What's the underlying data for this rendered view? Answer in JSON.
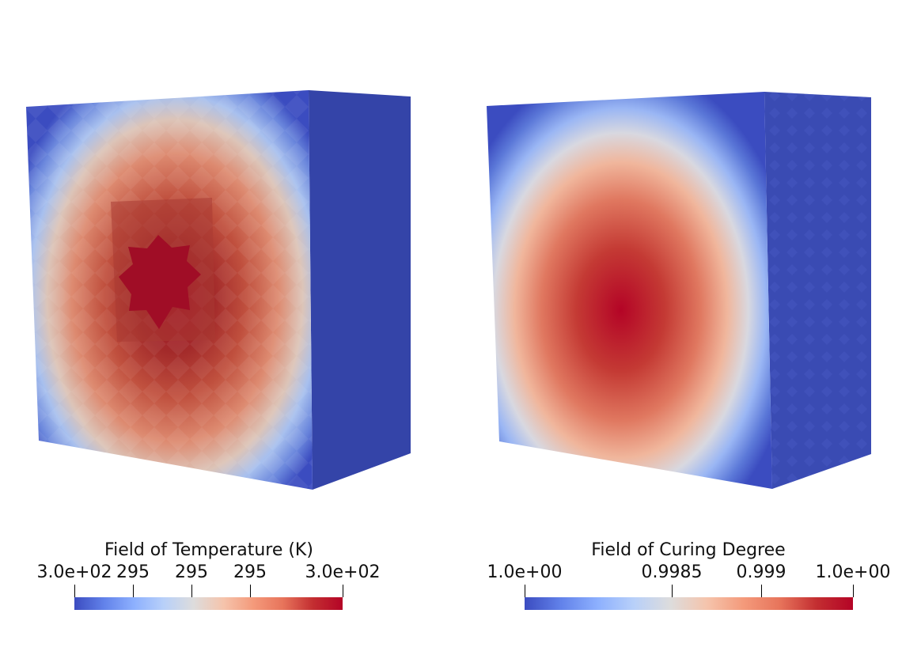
{
  "colormap": [
    "#3b4cc0",
    "#6282ea",
    "#8db0fe",
    "#b8d0f9",
    "#dddcdc",
    "#f5c4ac",
    "#f49a7b",
    "#e7745b",
    "#c32e31",
    "#b40426"
  ],
  "face_colors": {
    "background": "#3b4cc0",
    "side": "#3646a3",
    "hot_core": "#a00d26"
  },
  "panels": [
    {
      "field": "temperature",
      "legend": {
        "title": "Field of Temperature (K)",
        "ticks": [
          {
            "label": "3.0e+02",
            "position": 0.0
          },
          {
            "label": "295",
            "position": 0.22
          },
          {
            "label": "295",
            "position": 0.44
          },
          {
            "label": "295",
            "position": 0.66
          },
          {
            "label": "3.0e+02",
            "position": 1.0
          }
        ]
      }
    },
    {
      "field": "curing_degree",
      "legend": {
        "title": "Field of Curing Degree",
        "ticks": [
          {
            "label": "1.0e+00",
            "position": 0.0
          },
          {
            "label": "0.9985",
            "position": 0.45
          },
          {
            "label": "0.999",
            "position": 0.72
          },
          {
            "label": "1.0e+00",
            "position": 1.0
          }
        ]
      }
    }
  ]
}
